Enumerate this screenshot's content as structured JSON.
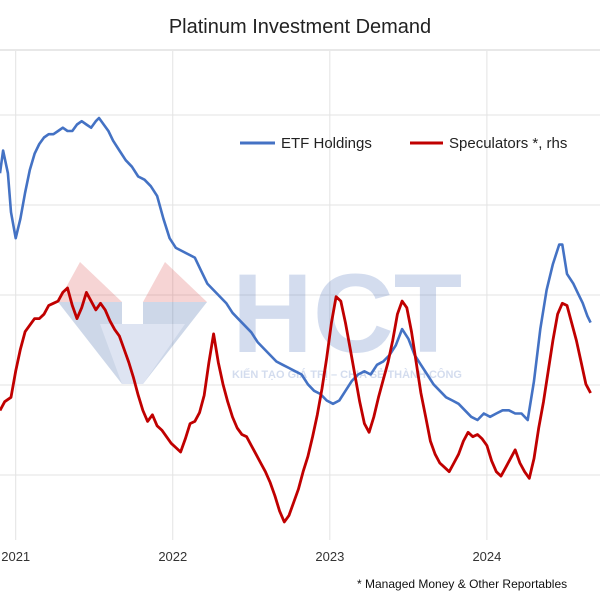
{
  "chart_data": {
    "type": "line",
    "title": "Platinum Investment Demand",
    "x_tick_labels": [
      "2021",
      "2022",
      "2023",
      "2024"
    ],
    "x_ticks": [
      2021,
      2022,
      2023,
      2024
    ],
    "xlim": [
      2020.9,
      2024.72
    ],
    "grid": true,
    "legend_position": "top-right",
    "footnote": "* Managed Money & Other Reportables",
    "watermark": {
      "logo_text": "HCT",
      "tagline": "KIẾN TẠO GIÁ TRỊ – CHIA SẺ THÀNH CÔNG"
    },
    "series": [
      {
        "name": "ETF Holdings",
        "axis": "left",
        "color": "#4472c4",
        "ylim": [
          0,
          100
        ],
        "points": [
          [
            2020.9,
            78
          ],
          [
            2020.92,
            85
          ],
          [
            2020.95,
            78
          ],
          [
            2020.97,
            66
          ],
          [
            2021.0,
            58
          ],
          [
            2021.03,
            64
          ],
          [
            2021.06,
            72
          ],
          [
            2021.09,
            79
          ],
          [
            2021.12,
            84
          ],
          [
            2021.15,
            87
          ],
          [
            2021.18,
            89
          ],
          [
            2021.21,
            90
          ],
          [
            2021.24,
            90
          ],
          [
            2021.27,
            91
          ],
          [
            2021.3,
            92
          ],
          [
            2021.33,
            91
          ],
          [
            2021.36,
            91
          ],
          [
            2021.39,
            93
          ],
          [
            2021.42,
            94
          ],
          [
            2021.45,
            93
          ],
          [
            2021.48,
            92
          ],
          [
            2021.51,
            94
          ],
          [
            2021.53,
            95
          ],
          [
            2021.56,
            93
          ],
          [
            2021.59,
            91
          ],
          [
            2021.62,
            88
          ],
          [
            2021.66,
            85
          ],
          [
            2021.7,
            82
          ],
          [
            2021.74,
            80
          ],
          [
            2021.78,
            77
          ],
          [
            2021.82,
            76
          ],
          [
            2021.86,
            74
          ],
          [
            2021.9,
            71
          ],
          [
            2021.94,
            64
          ],
          [
            2021.98,
            58
          ],
          [
            2022.02,
            55
          ],
          [
            2022.06,
            54
          ],
          [
            2022.1,
            53
          ],
          [
            2022.14,
            52
          ],
          [
            2022.18,
            48
          ],
          [
            2022.22,
            44
          ],
          [
            2022.26,
            42
          ],
          [
            2022.3,
            40
          ],
          [
            2022.34,
            38
          ],
          [
            2022.38,
            35
          ],
          [
            2022.42,
            33
          ],
          [
            2022.46,
            31
          ],
          [
            2022.5,
            29
          ],
          [
            2022.54,
            26
          ],
          [
            2022.58,
            24
          ],
          [
            2022.62,
            22
          ],
          [
            2022.66,
            20
          ],
          [
            2022.7,
            19
          ],
          [
            2022.74,
            18
          ],
          [
            2022.78,
            17
          ],
          [
            2022.82,
            16
          ],
          [
            2022.86,
            13
          ],
          [
            2022.9,
            11
          ],
          [
            2022.94,
            10
          ],
          [
            2022.98,
            8
          ],
          [
            2023.02,
            7
          ],
          [
            2023.06,
            8
          ],
          [
            2023.1,
            11
          ],
          [
            2023.14,
            14
          ],
          [
            2023.18,
            16
          ],
          [
            2023.22,
            17
          ],
          [
            2023.26,
            16
          ],
          [
            2023.3,
            19
          ],
          [
            2023.34,
            20
          ],
          [
            2023.38,
            22
          ],
          [
            2023.42,
            25
          ],
          [
            2023.46,
            30
          ],
          [
            2023.5,
            27
          ],
          [
            2023.54,
            22
          ],
          [
            2023.58,
            19
          ],
          [
            2023.62,
            16
          ],
          [
            2023.66,
            13
          ],
          [
            2023.7,
            11
          ],
          [
            2023.74,
            9
          ],
          [
            2023.78,
            8
          ],
          [
            2023.82,
            7
          ],
          [
            2023.86,
            5
          ],
          [
            2023.9,
            3
          ],
          [
            2023.94,
            2
          ],
          [
            2023.98,
            4
          ],
          [
            2024.02,
            3
          ],
          [
            2024.06,
            4
          ],
          [
            2024.1,
            5
          ],
          [
            2024.14,
            5
          ],
          [
            2024.18,
            4
          ],
          [
            2024.22,
            4
          ],
          [
            2024.26,
            2
          ],
          [
            2024.3,
            14
          ],
          [
            2024.34,
            30
          ],
          [
            2024.38,
            42
          ],
          [
            2024.42,
            50
          ],
          [
            2024.46,
            56
          ],
          [
            2024.48,
            56
          ],
          [
            2024.51,
            47
          ],
          [
            2024.55,
            44
          ],
          [
            2024.58,
            41
          ],
          [
            2024.61,
            38
          ],
          [
            2024.64,
            34
          ],
          [
            2024.66,
            32
          ]
        ]
      },
      {
        "name": "Speculators *, rhs",
        "axis": "right",
        "color": "#c00000",
        "ylim": [
          0,
          100
        ],
        "points": [
          [
            2020.9,
            8
          ],
          [
            2020.93,
            12
          ],
          [
            2020.97,
            14
          ],
          [
            2021.0,
            26
          ],
          [
            2021.03,
            36
          ],
          [
            2021.06,
            44
          ],
          [
            2021.09,
            47
          ],
          [
            2021.12,
            50
          ],
          [
            2021.15,
            50
          ],
          [
            2021.18,
            52
          ],
          [
            2021.21,
            56
          ],
          [
            2021.24,
            57
          ],
          [
            2021.27,
            58
          ],
          [
            2021.3,
            62
          ],
          [
            2021.33,
            64
          ],
          [
            2021.36,
            56
          ],
          [
            2021.39,
            50
          ],
          [
            2021.42,
            55
          ],
          [
            2021.45,
            62
          ],
          [
            2021.48,
            58
          ],
          [
            2021.51,
            54
          ],
          [
            2021.54,
            57
          ],
          [
            2021.57,
            54
          ],
          [
            2021.6,
            49
          ],
          [
            2021.63,
            45
          ],
          [
            2021.66,
            42
          ],
          [
            2021.69,
            36
          ],
          [
            2021.72,
            30
          ],
          [
            2021.75,
            23
          ],
          [
            2021.78,
            15
          ],
          [
            2021.81,
            8
          ],
          [
            2021.84,
            3
          ],
          [
            2021.87,
            6
          ],
          [
            2021.9,
            1
          ],
          [
            2021.93,
            -1
          ],
          [
            2021.96,
            -4
          ],
          [
            2021.99,
            -7
          ],
          [
            2022.02,
            -9
          ],
          [
            2022.05,
            -11
          ],
          [
            2022.08,
            -5
          ],
          [
            2022.11,
            2
          ],
          [
            2022.14,
            3
          ],
          [
            2022.17,
            7
          ],
          [
            2022.2,
            15
          ],
          [
            2022.23,
            30
          ],
          [
            2022.26,
            43
          ],
          [
            2022.29,
            30
          ],
          [
            2022.32,
            20
          ],
          [
            2022.35,
            12
          ],
          [
            2022.38,
            5
          ],
          [
            2022.41,
            0
          ],
          [
            2022.44,
            -3
          ],
          [
            2022.47,
            -4
          ],
          [
            2022.5,
            -8
          ],
          [
            2022.53,
            -12
          ],
          [
            2022.56,
            -16
          ],
          [
            2022.59,
            -20
          ],
          [
            2022.62,
            -25
          ],
          [
            2022.65,
            -31
          ],
          [
            2022.68,
            -38
          ],
          [
            2022.71,
            -43
          ],
          [
            2022.74,
            -40
          ],
          [
            2022.77,
            -34
          ],
          [
            2022.8,
            -28
          ],
          [
            2022.83,
            -20
          ],
          [
            2022.86,
            -13
          ],
          [
            2022.89,
            -4
          ],
          [
            2022.92,
            6
          ],
          [
            2022.95,
            18
          ],
          [
            2022.98,
            32
          ],
          [
            2023.01,
            48
          ],
          [
            2023.04,
            60
          ],
          [
            2023.07,
            58
          ],
          [
            2023.1,
            48
          ],
          [
            2023.13,
            36
          ],
          [
            2023.16,
            24
          ],
          [
            2023.19,
            12
          ],
          [
            2023.22,
            2
          ],
          [
            2023.25,
            -2
          ],
          [
            2023.28,
            5
          ],
          [
            2023.31,
            14
          ],
          [
            2023.34,
            22
          ],
          [
            2023.37,
            30
          ],
          [
            2023.4,
            40
          ],
          [
            2023.43,
            52
          ],
          [
            2023.46,
            58
          ],
          [
            2023.49,
            55
          ],
          [
            2023.52,
            44
          ],
          [
            2023.55,
            30
          ],
          [
            2023.58,
            16
          ],
          [
            2023.61,
            5
          ],
          [
            2023.64,
            -6
          ],
          [
            2023.67,
            -12
          ],
          [
            2023.7,
            -16
          ],
          [
            2023.73,
            -18
          ],
          [
            2023.76,
            -20
          ],
          [
            2023.79,
            -16
          ],
          [
            2023.82,
            -12
          ],
          [
            2023.85,
            -6
          ],
          [
            2023.88,
            -2
          ],
          [
            2023.91,
            -4
          ],
          [
            2023.94,
            -3
          ],
          [
            2023.97,
            -5
          ],
          [
            2024.0,
            -8
          ],
          [
            2024.03,
            -15
          ],
          [
            2024.06,
            -20
          ],
          [
            2024.09,
            -22
          ],
          [
            2024.12,
            -18
          ],
          [
            2024.15,
            -14
          ],
          [
            2024.18,
            -10
          ],
          [
            2024.21,
            -16
          ],
          [
            2024.24,
            -20
          ],
          [
            2024.27,
            -23
          ],
          [
            2024.3,
            -14
          ],
          [
            2024.33,
            0
          ],
          [
            2024.36,
            12
          ],
          [
            2024.39,
            26
          ],
          [
            2024.42,
            40
          ],
          [
            2024.45,
            52
          ],
          [
            2024.48,
            57
          ],
          [
            2024.51,
            56
          ],
          [
            2024.54,
            48
          ],
          [
            2024.57,
            40
          ],
          [
            2024.6,
            30
          ],
          [
            2024.63,
            20
          ],
          [
            2024.66,
            16
          ]
        ]
      }
    ]
  }
}
